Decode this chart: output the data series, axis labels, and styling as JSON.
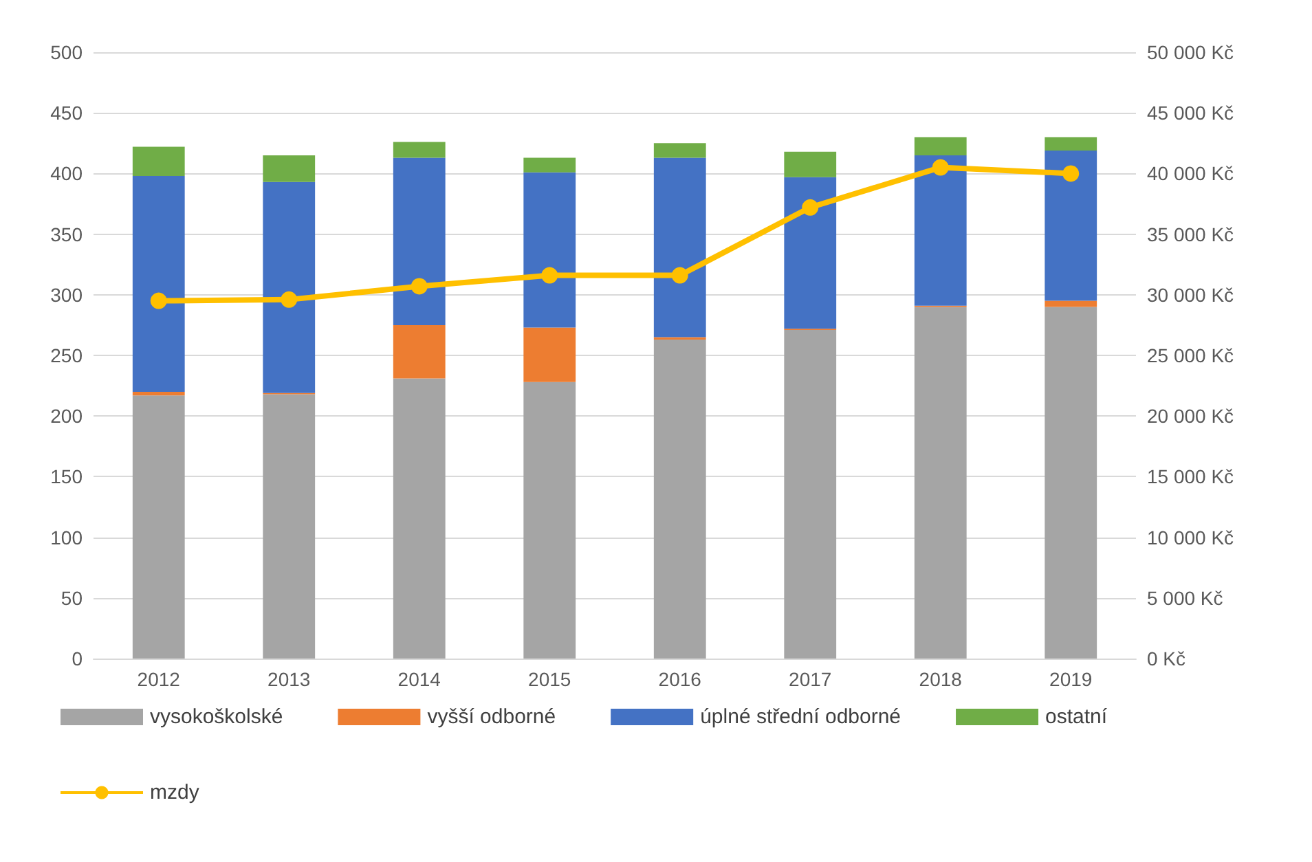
{
  "chart_data": {
    "type": "bar",
    "stacked": true,
    "categories": [
      "2012",
      "2013",
      "2014",
      "2015",
      "2016",
      "2017",
      "2018",
      "2019"
    ],
    "series": [
      {
        "name": "vysokoškolské",
        "color": "#a5a5a5",
        "values": [
          217,
          218,
          231,
          228,
          263,
          271,
          290,
          290
        ]
      },
      {
        "name": "vyšší odborné",
        "color": "#ed7d31",
        "values": [
          3,
          1,
          44,
          45,
          2,
          1,
          1,
          5
        ]
      },
      {
        "name": "úplné střední odborné",
        "color": "#4472c4",
        "values": [
          178,
          174,
          138,
          128,
          148,
          125,
          124,
          124
        ]
      },
      {
        "name": "ostatní",
        "color": "#70ad47",
        "values": [
          24,
          22,
          13,
          12,
          12,
          21,
          15,
          11
        ]
      },
      {
        "name": "mzdy",
        "type": "line",
        "axis": "y2",
        "color": "#ffc000",
        "marker": "circle",
        "values": [
          29500,
          29600,
          30700,
          31600,
          31600,
          37200,
          40500,
          40000
        ]
      }
    ],
    "ylim": [
      0,
      500
    ],
    "yticks": [
      0,
      50,
      100,
      150,
      200,
      250,
      300,
      350,
      400,
      450,
      500
    ],
    "y2lim": [
      0,
      50000
    ],
    "y2ticks": [
      {
        "value": 0,
        "label": "0 Kč"
      },
      {
        "value": 5000,
        "label": "5 000 Kč"
      },
      {
        "value": 10000,
        "label": "10 000 Kč"
      },
      {
        "value": 15000,
        "label": "15 000 Kč"
      },
      {
        "value": 20000,
        "label": "20 000 Kč"
      },
      {
        "value": 25000,
        "label": "25 000 Kč"
      },
      {
        "value": 30000,
        "label": "30 000 Kč"
      },
      {
        "value": 35000,
        "label": "35 000 Kč"
      },
      {
        "value": 40000,
        "label": "40 000 Kč"
      },
      {
        "value": 45000,
        "label": "45 000 Kč"
      },
      {
        "value": 50000,
        "label": "50 000 Kč"
      }
    ],
    "grid": "y",
    "legend": "bottom"
  }
}
